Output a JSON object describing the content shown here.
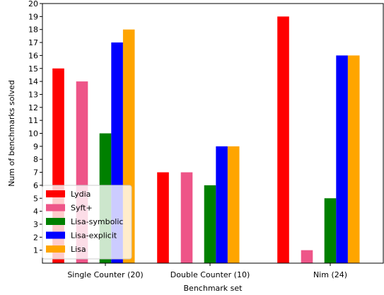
{
  "chart_data": {
    "type": "bar",
    "title": "",
    "xlabel": "Benchmark set",
    "ylabel": "Num of benchmarks solved",
    "categories": [
      "Single Counter (20)",
      "Double Counter (10)",
      "Nim (24)"
    ],
    "ylim": [
      0,
      20
    ],
    "yticks": [
      1,
      2,
      3,
      4,
      5,
      6,
      7,
      8,
      9,
      10,
      11,
      12,
      13,
      14,
      15,
      16,
      17,
      18,
      19,
      20
    ],
    "grid": false,
    "legend_position": "lower-left",
    "series": [
      {
        "name": "Lydia",
        "color": "#ff0000",
        "values": [
          15,
          7,
          19
        ]
      },
      {
        "name": "Syft+",
        "color": "#ee5588",
        "values": [
          14,
          7,
          1
        ]
      },
      {
        "name": "Lisa-symbolic",
        "color": "#008000",
        "values": [
          10,
          6,
          5
        ]
      },
      {
        "name": "Lisa-explicit",
        "color": "#0000ff",
        "values": [
          17,
          9,
          16
        ]
      },
      {
        "name": "Lisa",
        "color": "#ffa500",
        "values": [
          18,
          9,
          16
        ]
      }
    ]
  }
}
